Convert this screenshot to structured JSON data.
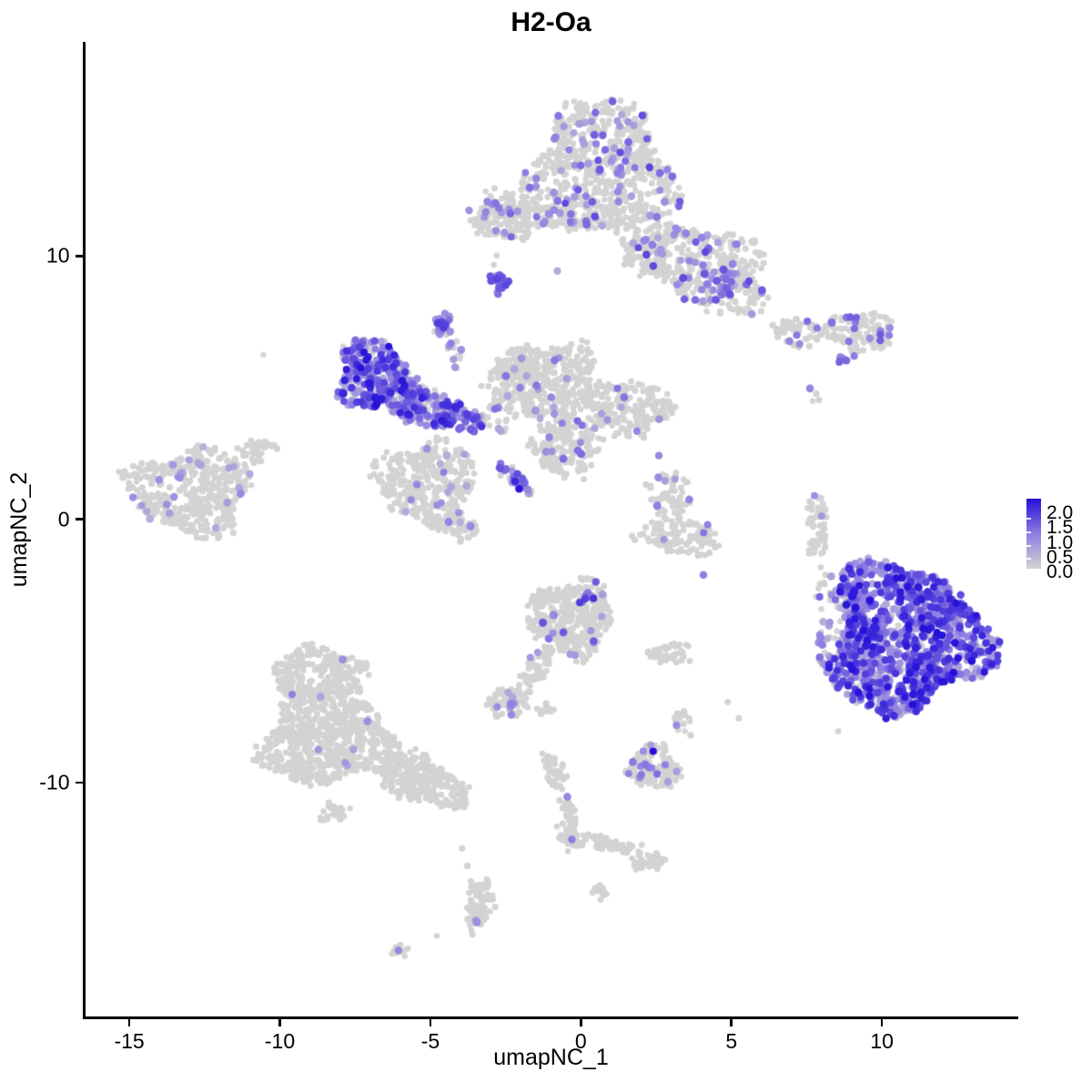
{
  "page": {
    "background": "#ffffff"
  },
  "chart_data": {
    "type": "scatter",
    "title": "H2-Oa",
    "xlabel": "umapNC_1",
    "ylabel": "umapNC_2",
    "xlim": [
      -16.5,
      14.5
    ],
    "ylim": [
      -18.9,
      18.1
    ],
    "xticks": [
      -15,
      -10,
      -5,
      0,
      5,
      10
    ],
    "yticks": [
      -10,
      0,
      10
    ],
    "grid": false,
    "legend_position": "right",
    "colorbar": {
      "labels": [
        "2.0",
        "1.5",
        "1.0",
        "0.5",
        "0.0"
      ],
      "min": 0.0,
      "max": 2.0,
      "color_low": "#d3d3d3",
      "color_mid": "#8f7de2",
      "color_high": "#2410d8"
    },
    "point_color_zero": "#d3d3d3",
    "point_radius": {
      "zero": 3.2,
      "expressed": 3.9
    },
    "clusters": [
      {
        "id": "top-main",
        "cx": 0.65,
        "cy": 13.33,
        "rx": 2.36,
        "ry": 2.49,
        "rot": 0,
        "n": 700,
        "f": 0.1,
        "vr": [
          0.5,
          1.5
        ]
      },
      {
        "id": "top-right-lobe",
        "cx": 4.13,
        "cy": 9.53,
        "rx": 2.36,
        "ry": 1.45,
        "rot": -25,
        "n": 380,
        "f": 0.1,
        "vr": [
          0.5,
          1.5
        ]
      },
      {
        "id": "top-right-hotspot",
        "cx": 4.58,
        "cy": 9.02,
        "rx": 0.58,
        "ry": 0.6,
        "rot": 0,
        "n": 30,
        "f": 0.75,
        "vr": [
          0.7,
          1.8
        ]
      },
      {
        "id": "top-bridge",
        "cx": 2.16,
        "cy": 10.55,
        "rx": 0.91,
        "ry": 1.15,
        "rot": -20,
        "n": 90,
        "f": 0.06,
        "vr": [
          0.5,
          1.2
        ]
      },
      {
        "id": "top-left-arm",
        "cx": -1.62,
        "cy": 11.54,
        "rx": 1.73,
        "ry": 0.42,
        "rot": -6,
        "n": 110,
        "f": 0.1,
        "vr": [
          0.7,
          1.2
        ]
      },
      {
        "id": "top-left-blob",
        "cx": -2.62,
        "cy": 11.45,
        "rx": 0.95,
        "ry": 0.92,
        "rot": 0,
        "n": 130,
        "f": 0.09,
        "vr": [
          0.7,
          1.2
        ]
      },
      {
        "id": "small-purple-knot",
        "cx": -2.74,
        "cy": 8.95,
        "rx": 0.33,
        "ry": 0.45,
        "rot": -15,
        "n": 20,
        "f": 0.85,
        "vr": [
          0.7,
          1.6
        ]
      },
      {
        "id": "teardrop",
        "cx": -4.58,
        "cy": 7.43,
        "rx": 0.28,
        "ry": 0.55,
        "rot": -20,
        "n": 24,
        "f": 0.85,
        "vr": [
          0.7,
          1.6
        ]
      },
      {
        "id": "teardrop-trail",
        "cx": -4.19,
        "cy": 6.42,
        "rx": 0.25,
        "ry": 0.7,
        "rot": 10,
        "n": 16,
        "f": 0.35,
        "vr": [
          0.6,
          1.2
        ]
      },
      {
        "id": "hot-cluster-main",
        "cx": -6.91,
        "cy": 5.49,
        "rx": 1.18,
        "ry": 1.3,
        "rot": -15,
        "n": 280,
        "f": 0.74,
        "vr": [
          0.5,
          2.0
        ]
      },
      {
        "id": "hot-cluster-neck",
        "cx": -5.85,
        "cy": 4.7,
        "rx": 0.85,
        "ry": 0.6,
        "rot": -20,
        "n": 90,
        "f": 0.5,
        "vr": [
          0.5,
          1.6
        ]
      },
      {
        "id": "hot-band",
        "cx": -4.79,
        "cy": 4.11,
        "rx": 1.57,
        "ry": 0.62,
        "rot": -18,
        "n": 220,
        "f": 0.6,
        "vr": [
          0.5,
          1.9
        ]
      },
      {
        "id": "gray-below-band",
        "cx": -5.1,
        "cy": 1.42,
        "rx": 1.66,
        "ry": 1.55,
        "rot": 0,
        "n": 330,
        "f": 0.06,
        "vr": [
          0.4,
          1.0
        ]
      },
      {
        "id": "gray-below-ext",
        "cx": -4.04,
        "cy": -0.14,
        "rx": 0.7,
        "ry": 0.5,
        "rot": -25,
        "n": 50,
        "f": 0.04,
        "vr": [
          0.4,
          0.9
        ]
      },
      {
        "id": "central-main",
        "cx": -1.16,
        "cy": 5.22,
        "rx": 1.75,
        "ry": 1.55,
        "rot": 0,
        "n": 390,
        "f": 0.03,
        "vr": [
          0.5,
          1.2
        ]
      },
      {
        "id": "central-right-arm",
        "cx": 1.5,
        "cy": 4.25,
        "rx": 1.45,
        "ry": 1.1,
        "rot": -12,
        "n": 200,
        "f": 0.04,
        "vr": [
          0.5,
          1.2
        ]
      },
      {
        "id": "central-left-tip",
        "cx": -2.07,
        "cy": 5.73,
        "rx": 0.6,
        "ry": 0.5,
        "rot": 0,
        "n": 60,
        "f": 0.05,
        "vr": [
          0.5,
          1.0
        ]
      },
      {
        "id": "central-lower",
        "cx": -0.5,
        "cy": 2.73,
        "rx": 1.15,
        "ry": 1.1,
        "rot": 0,
        "n": 180,
        "f": 0.05,
        "vr": [
          0.5,
          1.2
        ]
      },
      {
        "id": "central-connector",
        "cx": -2.62,
        "cy": 4.01,
        "rx": 0.55,
        "ry": 0.75,
        "rot": 0,
        "n": 30,
        "f": 0.15,
        "vr": [
          0.5,
          1.2
        ]
      },
      {
        "id": "diag-streak",
        "cx": -2.19,
        "cy": 1.55,
        "rx": 0.85,
        "ry": 0.18,
        "rot": -48,
        "n": 35,
        "f": 0.7,
        "vr": [
          0.6,
          2.0
        ]
      },
      {
        "id": "left-cluster",
        "cx": -12.96,
        "cy": 1.07,
        "rx": 2.0,
        "ry": 1.62,
        "rot": 0,
        "n": 430,
        "f": 0.05,
        "vr": [
          0.4,
          0.9
        ]
      },
      {
        "id": "left-cluster-tail",
        "cx": -10.9,
        "cy": 2.52,
        "rx": 0.79,
        "ry": 0.42,
        "rot": 30,
        "n": 45,
        "f": 0.03,
        "vr": [
          0.4,
          0.8
        ]
      },
      {
        "id": "right-arm-west",
        "cx": 7.24,
        "cy": 7.08,
        "rx": 0.91,
        "ry": 0.5,
        "rot": -10,
        "n": 55,
        "f": 0.06,
        "vr": [
          0.8,
          1.2
        ]
      },
      {
        "id": "right-arm-east",
        "cx": 9.27,
        "cy": 7.12,
        "rx": 1.15,
        "ry": 0.69,
        "rot": -8,
        "n": 115,
        "f": 0.1,
        "vr": [
          0.8,
          1.4
        ]
      },
      {
        "id": "right-streak",
        "cx": 8.76,
        "cy": 6.04,
        "rx": 0.4,
        "ry": 0.14,
        "rot": 30,
        "n": 9,
        "f": 0.95,
        "vr": [
          0.8,
          1.3
        ]
      },
      {
        "id": "right-thin-blob",
        "cx": 7.85,
        "cy": -0.21,
        "rx": 0.33,
        "ry": 1.38,
        "rot": 0,
        "n": 55,
        "f": 0.04,
        "vr": [
          0.6,
          1.0
        ]
      },
      {
        "id": "big-right-core",
        "cx": 10.78,
        "cy": -4.53,
        "rx": 2.6,
        "ry": 2.78,
        "rot": 0,
        "n": 1150,
        "f": 0.86,
        "vr": [
          0.4,
          2.0
        ]
      },
      {
        "id": "big-right-fringe",
        "cx": 8.58,
        "cy": -4.18,
        "rx": 0.8,
        "ry": 2.14,
        "rot": 0,
        "n": 90,
        "f": 0.4,
        "vr": [
          0.4,
          1.3
        ]
      },
      {
        "id": "bottom-central",
        "cx": -0.32,
        "cy": -3.7,
        "rx": 1.39,
        "ry": 1.38,
        "rot": 0,
        "n": 390,
        "f": 0.035,
        "vr": [
          0.6,
          1.4
        ]
      },
      {
        "id": "bottom-central-clump",
        "cx": 0.2,
        "cy": -3.07,
        "rx": 0.3,
        "ry": 0.3,
        "rot": 0,
        "n": 7,
        "f": 0.95,
        "vr": [
          0.9,
          1.7
        ]
      },
      {
        "id": "bottom-central-tail",
        "cx": -1.47,
        "cy": -5.66,
        "rx": 0.35,
        "ry": 0.9,
        "rot": -29,
        "n": 60,
        "f": 0.03,
        "vr": [
          0.6,
          1.0
        ]
      },
      {
        "id": "small-below-blob",
        "cx": -2.37,
        "cy": -6.94,
        "rx": 0.79,
        "ry": 0.55,
        "rot": 0,
        "n": 75,
        "f": 0.04,
        "vr": [
          0.5,
          0.9
        ]
      },
      {
        "id": "small-below-clump",
        "cx": -2.37,
        "cy": -6.98,
        "rx": 0.28,
        "ry": 0.22,
        "rot": 0,
        "n": 4,
        "f": 1.0,
        "vr": [
          0.6,
          1.0
        ]
      },
      {
        "id": "small-below-bits",
        "cx": -1.26,
        "cy": -7.15,
        "rx": 0.35,
        "ry": 0.2,
        "rot": 0,
        "n": 10,
        "f": 0,
        "vr": [
          0.5,
          1.0
        ]
      },
      {
        "id": "mid-right-sparse",
        "cx": 2.98,
        "cy": 0.86,
        "rx": 0.73,
        "ry": 1.03,
        "rot": 0,
        "n": 70,
        "f": 0.06,
        "vr": [
          0.6,
          1.1
        ]
      },
      {
        "id": "mid-right-crescent",
        "cx": 3.28,
        "cy": -0.69,
        "rx": 1.36,
        "ry": 0.66,
        "rot": -8,
        "n": 130,
        "f": 0.03,
        "vr": [
          0.6,
          1.1
        ]
      },
      {
        "id": "small-mid",
        "cx": 2.98,
        "cy": -5.08,
        "rx": 0.67,
        "ry": 0.38,
        "rot": 0,
        "n": 40,
        "f": 0,
        "vr": [
          0.5,
          1.0
        ]
      },
      {
        "id": "tiny-mid-low",
        "cx": 3.4,
        "cy": -7.67,
        "rx": 0.33,
        "ry": 0.45,
        "rot": 0,
        "n": 20,
        "f": 0.06,
        "vr": [
          0.8,
          1.1
        ]
      },
      {
        "id": "lower-mid-cluster",
        "cx": 2.44,
        "cy": -9.39,
        "rx": 0.88,
        "ry": 0.79,
        "rot": 0,
        "n": 130,
        "f": 0.04,
        "vr": [
          0.6,
          1.2
        ]
      },
      {
        "id": "lower-mid-clump",
        "cx": 2.22,
        "cy": -9.57,
        "rx": 0.3,
        "ry": 0.25,
        "rot": 0,
        "n": 4,
        "f": 1.0,
        "vr": [
          0.8,
          1.2
        ]
      },
      {
        "id": "bottom-left-top",
        "cx": -8.73,
        "cy": -5.87,
        "rx": 1.57,
        "ry": 1.0,
        "rot": 0,
        "n": 260,
        "f": 0.008,
        "vr": [
          0.5,
          1.0
        ]
      },
      {
        "id": "bottom-left-main",
        "cx": -8.42,
        "cy": -8.32,
        "rx": 2.21,
        "ry": 1.79,
        "rot": 0,
        "n": 720,
        "f": 0.003,
        "vr": [
          0.4,
          0.8
        ]
      },
      {
        "id": "bottom-left-tail",
        "cx": -5.25,
        "cy": -9.91,
        "rx": 1.57,
        "ry": 0.83,
        "rot": -25,
        "n": 260,
        "f": 0,
        "vr": [
          0.4,
          0.8
        ]
      },
      {
        "id": "bottom-left-bits",
        "cx": -8.18,
        "cy": -11.12,
        "rx": 0.5,
        "ry": 0.3,
        "rot": 0,
        "n": 25,
        "f": 0,
        "vr": [
          0.4,
          0.8
        ]
      },
      {
        "id": "chain-top",
        "cx": -0.92,
        "cy": -9.5,
        "rx": 0.36,
        "ry": 0.66,
        "rot": 25,
        "n": 45,
        "f": 0,
        "vr": [
          0.5,
          1.0
        ]
      },
      {
        "id": "chain-mid",
        "cx": -0.44,
        "cy": -11.19,
        "rx": 0.2,
        "ry": 0.95,
        "rot": 15,
        "n": 40,
        "f": 0,
        "vr": [
          0.5,
          1.0
        ]
      },
      {
        "id": "chain-knot",
        "cx": -0.29,
        "cy": -12.16,
        "rx": 0.39,
        "ry": 0.38,
        "rot": 0,
        "n": 35,
        "f": 0,
        "vr": [
          0.5,
          1.0
        ]
      },
      {
        "id": "chain-arm",
        "cx": 0.89,
        "cy": -12.33,
        "rx": 0.85,
        "ry": 0.24,
        "rot": -20,
        "n": 55,
        "f": 0,
        "vr": [
          0.5,
          1.0
        ]
      },
      {
        "id": "chain-end",
        "cx": 2.22,
        "cy": -12.95,
        "rx": 0.51,
        "ry": 0.41,
        "rot": 0,
        "n": 45,
        "f": 0,
        "vr": [
          0.5,
          1.0
        ]
      },
      {
        "id": "tiny-bottom",
        "cx": 0.59,
        "cy": -14.13,
        "rx": 0.27,
        "ry": 0.24,
        "rot": 0,
        "n": 12,
        "f": 0,
        "vr": [
          0.5,
          1.0
        ]
      },
      {
        "id": "bottom-thin",
        "cx": -3.37,
        "cy": -14.65,
        "rx": 0.39,
        "ry": 1.1,
        "rot": -8,
        "n": 95,
        "f": 0,
        "vr": [
          0.5,
          1.0
        ]
      },
      {
        "id": "bottom-thin-clump",
        "cx": -3.52,
        "cy": -15.34,
        "rx": 0.25,
        "ry": 0.2,
        "rot": 0,
        "n": 3,
        "f": 1.0,
        "vr": [
          0.6,
          0.9
        ]
      },
      {
        "id": "tiny-bottom-left",
        "cx": -6.0,
        "cy": -16.34,
        "rx": 0.3,
        "ry": 0.2,
        "rot": 25,
        "n": 12,
        "f": 0,
        "vr": [
          0.5,
          1.0
        ]
      }
    ],
    "points_extra": [
      [
        -10.55,
        6.25,
        0
      ],
      [
        -2.89,
        9.67,
        0
      ],
      [
        -2.8,
        10.02,
        0
      ],
      [
        -0.78,
        9.43,
        0.5
      ],
      [
        1.86,
        3.35,
        0.9
      ],
      [
        2.59,
        2.42,
        0.9
      ],
      [
        4.07,
        -2.11,
        1.0
      ],
      [
        7.61,
        4.97,
        0.9
      ],
      [
        7.82,
        4.77,
        0
      ],
      [
        7.91,
        4.53,
        0
      ],
      [
        7.7,
        4.49,
        0
      ],
      [
        7.76,
        0.9,
        0.8
      ],
      [
        7.97,
        -1.83,
        0
      ],
      [
        8.79,
        -2.35,
        1.0
      ],
      [
        8.27,
        -2.8,
        0
      ],
      [
        8.55,
        -8.05,
        0
      ],
      [
        4.88,
        -6.94,
        0
      ],
      [
        5.25,
        -7.56,
        0
      ],
      [
        -3.95,
        -12.5,
        0
      ],
      [
        -3.77,
        -13.16,
        0
      ],
      [
        -4.79,
        -15.82,
        0
      ],
      [
        -0.8,
        -11.67,
        0
      ],
      [
        -1.68,
        -5.25,
        0.7
      ],
      [
        2.4,
        -8.81,
        2.0
      ],
      [
        -6.06,
        -16.37,
        0.9
      ],
      [
        -0.3,
        -12.16,
        1.0
      ],
      [
        -0.45,
        -10.54,
        0.9
      ],
      [
        -2.34,
        -7.12,
        0.8
      ],
      [
        -7.91,
        -5.32,
        0.8
      ],
      [
        -7.09,
        -7.67,
        0.8
      ]
    ]
  }
}
